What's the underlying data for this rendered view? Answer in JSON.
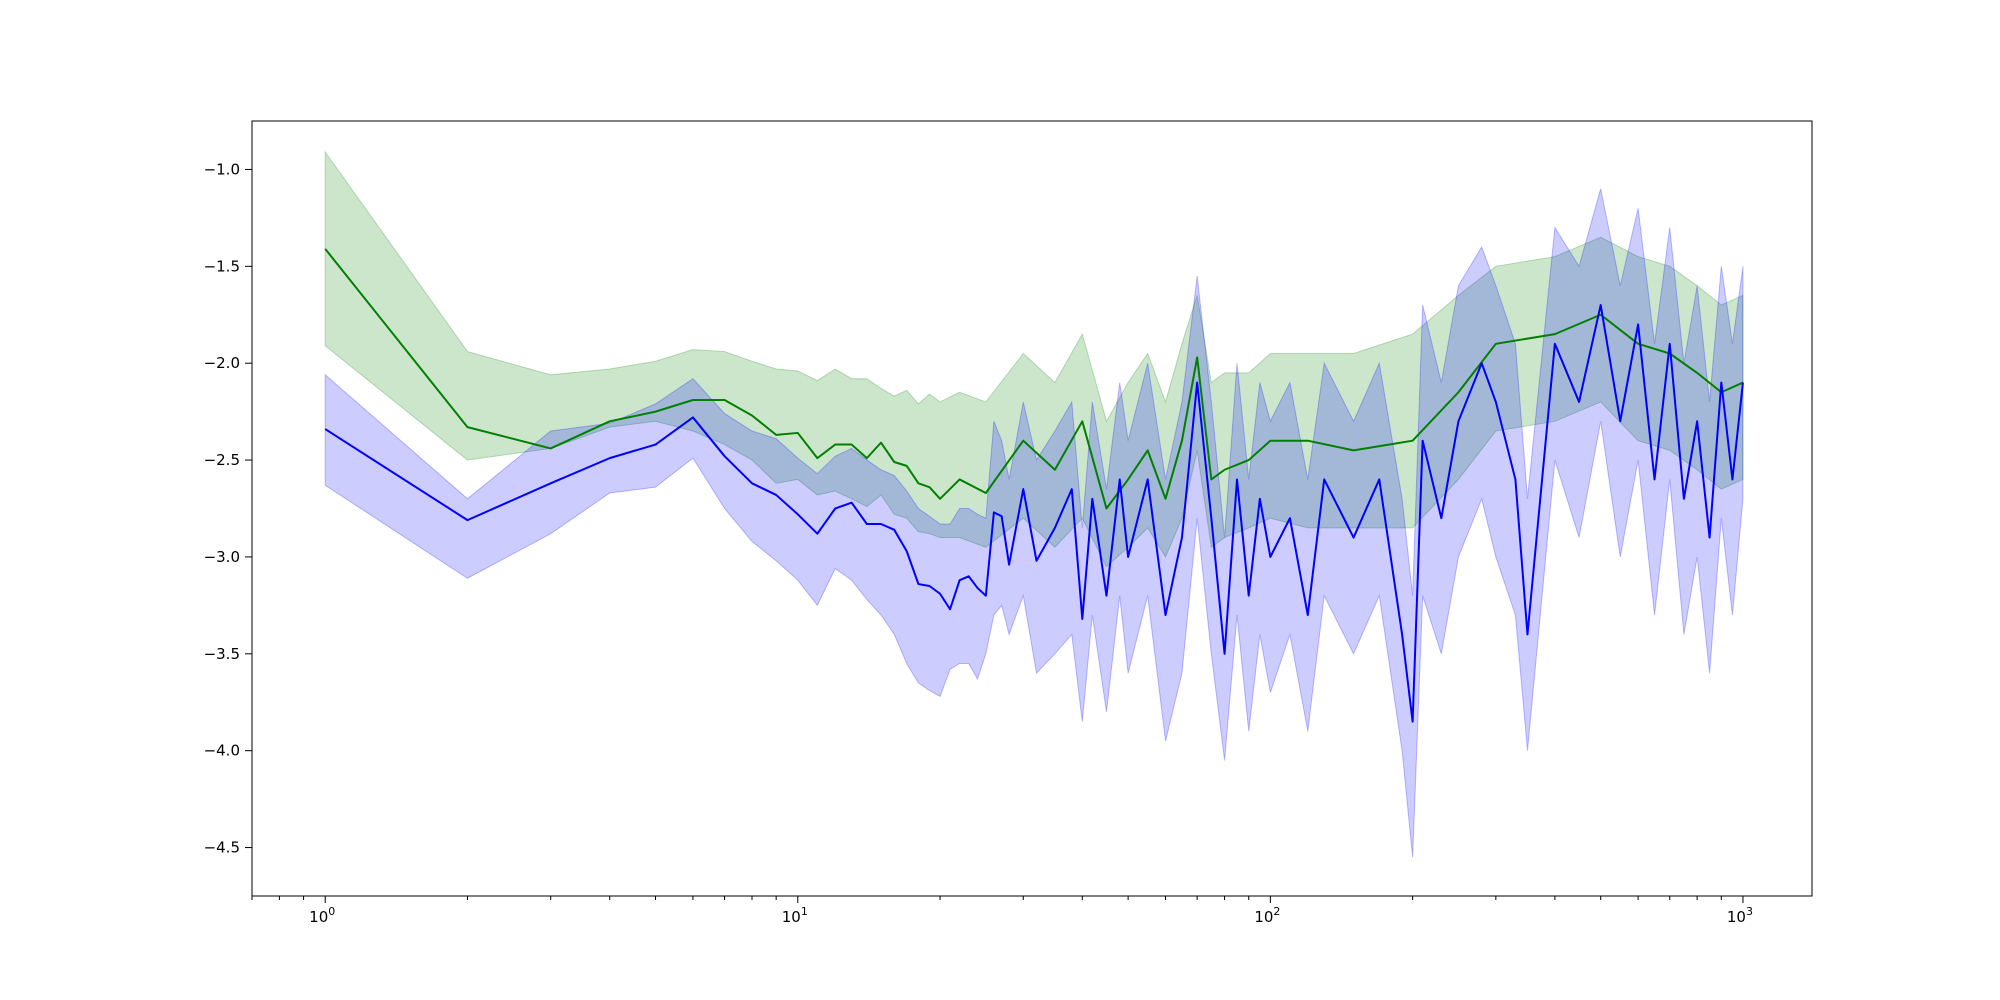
{
  "chart_data": {
    "type": "line",
    "title": "",
    "xlabel": "",
    "ylabel": "",
    "x_scale": "log",
    "xlim": [
      0.7,
      1400
    ],
    "ylim": [
      -4.75,
      -0.75
    ],
    "grid": false,
    "legend": "none",
    "x_ticks": [
      {
        "value": 1,
        "base": "10",
        "exp": "0"
      },
      {
        "value": 10,
        "base": "10",
        "exp": "1"
      },
      {
        "value": 100,
        "base": "10",
        "exp": "2"
      },
      {
        "value": 1000,
        "base": "10",
        "exp": "3"
      }
    ],
    "y_ticks": [
      {
        "value": -1.0,
        "label": "−1.0"
      },
      {
        "value": -1.5,
        "label": "−1.5"
      },
      {
        "value": -2.0,
        "label": "−2.0"
      },
      {
        "value": -2.5,
        "label": "−2.5"
      },
      {
        "value": -3.0,
        "label": "−3.0"
      },
      {
        "value": -3.5,
        "label": "−3.5"
      },
      {
        "value": -4.0,
        "label": "−4.0"
      },
      {
        "value": -4.5,
        "label": "−4.5"
      }
    ],
    "series": [
      {
        "color": "#008000",
        "band_color": "#008000",
        "band_opacity": 0.2,
        "x": [
          1,
          2,
          3,
          4,
          5,
          6,
          7,
          8,
          9,
          10,
          11,
          12,
          13,
          14,
          15,
          16,
          17,
          18,
          19,
          20,
          22,
          25,
          30,
          35,
          40,
          45,
          50,
          55,
          60,
          65,
          70,
          75,
          80,
          90,
          100,
          120,
          150,
          200,
          250,
          300,
          400,
          500,
          600,
          700,
          800,
          900,
          1000
        ],
        "y": [
          -1.41,
          -2.33,
          -2.44,
          -2.3,
          -2.25,
          -2.19,
          -2.19,
          -2.27,
          -2.37,
          -2.36,
          -2.49,
          -2.42,
          -2.42,
          -2.49,
          -2.41,
          -2.51,
          -2.53,
          -2.62,
          -2.64,
          -2.7,
          -2.6,
          -2.67,
          -2.4,
          -2.55,
          -2.3,
          -2.75,
          -2.6,
          -2.45,
          -2.7,
          -2.4,
          -1.97,
          -2.6,
          -2.55,
          -2.5,
          -2.4,
          -2.4,
          -2.45,
          -2.4,
          -2.15,
          -1.9,
          -1.85,
          -1.75,
          -1.9,
          -1.95,
          -2.05,
          -2.15,
          -2.1
        ],
        "lower": [
          -1.91,
          -2.5,
          -2.44,
          -2.33,
          -2.3,
          -2.35,
          -2.42,
          -2.5,
          -2.62,
          -2.6,
          -2.68,
          -2.66,
          -2.7,
          -2.74,
          -2.68,
          -2.78,
          -2.8,
          -2.87,
          -2.88,
          -2.9,
          -2.9,
          -2.95,
          -2.8,
          -2.95,
          -2.8,
          -3.05,
          -2.95,
          -2.85,
          -3.0,
          -2.8,
          -2.45,
          -2.95,
          -2.9,
          -2.85,
          -2.8,
          -2.85,
          -2.85,
          -2.85,
          -2.6,
          -2.35,
          -2.3,
          -2.2,
          -2.4,
          -2.45,
          -2.55,
          -2.65,
          -2.6
        ],
        "upper": [
          -0.91,
          -1.94,
          -2.06,
          -2.03,
          -1.99,
          -1.93,
          -1.94,
          -1.99,
          -2.03,
          -2.04,
          -2.09,
          -2.03,
          -2.08,
          -2.08,
          -2.13,
          -2.17,
          -2.14,
          -2.21,
          -2.16,
          -2.2,
          -2.15,
          -2.2,
          -1.95,
          -2.1,
          -1.85,
          -2.3,
          -2.1,
          -1.95,
          -2.2,
          -1.9,
          -1.65,
          -2.1,
          -2.05,
          -2.05,
          -1.95,
          -1.95,
          -1.95,
          -1.85,
          -1.65,
          -1.5,
          -1.45,
          -1.35,
          -1.45,
          -1.5,
          -1.6,
          -1.7,
          -1.65
        ]
      },
      {
        "color": "#0000ff",
        "band_color": "#0000ff",
        "band_opacity": 0.2,
        "x": [
          1,
          2,
          3,
          4,
          5,
          6,
          7,
          8,
          9,
          10,
          11,
          12,
          13,
          14,
          15,
          16,
          17,
          18,
          19,
          20,
          21,
          22,
          23,
          24,
          25,
          26,
          27,
          28,
          30,
          32,
          35,
          38,
          40,
          42,
          45,
          48,
          50,
          55,
          60,
          65,
          70,
          75,
          80,
          85,
          90,
          95,
          100,
          110,
          120,
          130,
          150,
          170,
          190,
          200,
          210,
          230,
          250,
          280,
          300,
          330,
          350,
          400,
          450,
          500,
          550,
          600,
          650,
          700,
          750,
          800,
          850,
          900,
          950,
          1000
        ],
        "y": [
          -2.34,
          -2.81,
          -2.62,
          -2.49,
          -2.42,
          -2.28,
          -2.48,
          -2.62,
          -2.68,
          -2.78,
          -2.88,
          -2.75,
          -2.72,
          -2.83,
          -2.83,
          -2.86,
          -2.97,
          -3.14,
          -3.15,
          -3.19,
          -3.27,
          -3.12,
          -3.1,
          -3.16,
          -3.2,
          -2.77,
          -2.79,
          -3.04,
          -2.65,
          -3.02,
          -2.85,
          -2.65,
          -3.32,
          -2.7,
          -3.2,
          -2.6,
          -3.0,
          -2.6,
          -3.3,
          -2.9,
          -2.1,
          -2.8,
          -3.5,
          -2.6,
          -3.2,
          -2.7,
          -3.0,
          -2.8,
          -3.3,
          -2.6,
          -2.9,
          -2.6,
          -3.4,
          -3.85,
          -2.4,
          -2.8,
          -2.3,
          -2.0,
          -2.2,
          -2.6,
          -3.4,
          -1.9,
          -2.2,
          -1.7,
          -2.3,
          -1.8,
          -2.6,
          -1.9,
          -2.7,
          -2.3,
          -2.9,
          -2.1,
          -2.6,
          -2.1
        ],
        "lower": [
          -2.63,
          -3.11,
          -2.88,
          -2.67,
          -2.64,
          -2.49,
          -2.75,
          -2.92,
          -3.02,
          -3.12,
          -3.25,
          -3.06,
          -3.12,
          -3.22,
          -3.3,
          -3.4,
          -3.55,
          -3.65,
          -3.69,
          -3.72,
          -3.58,
          -3.55,
          -3.55,
          -3.63,
          -3.5,
          -3.3,
          -3.25,
          -3.4,
          -3.2,
          -3.6,
          -3.5,
          -3.4,
          -3.85,
          -3.3,
          -3.8,
          -3.2,
          -3.6,
          -3.2,
          -3.95,
          -3.6,
          -2.8,
          -3.5,
          -4.05,
          -3.3,
          -3.9,
          -3.4,
          -3.7,
          -3.4,
          -3.9,
          -3.2,
          -3.5,
          -3.2,
          -4.0,
          -4.55,
          -3.2,
          -3.5,
          -3.0,
          -2.7,
          -3.0,
          -3.3,
          -4.0,
          -2.5,
          -2.9,
          -2.3,
          -3.0,
          -2.5,
          -3.3,
          -2.6,
          -3.4,
          -3.0,
          -3.6,
          -2.8,
          -3.3,
          -2.7
        ],
        "upper": [
          -2.06,
          -2.7,
          -2.35,
          -2.31,
          -2.21,
          -2.08,
          -2.26,
          -2.35,
          -2.39,
          -2.49,
          -2.57,
          -2.48,
          -2.44,
          -2.5,
          -2.55,
          -2.58,
          -2.66,
          -2.75,
          -2.79,
          -2.83,
          -2.83,
          -2.75,
          -2.75,
          -2.78,
          -2.8,
          -2.3,
          -2.4,
          -2.6,
          -2.2,
          -2.5,
          -2.35,
          -2.2,
          -2.85,
          -2.2,
          -2.65,
          -2.1,
          -2.4,
          -2.0,
          -2.6,
          -2.2,
          -1.55,
          -2.2,
          -2.9,
          -2.0,
          -2.6,
          -2.1,
          -2.3,
          -2.1,
          -2.6,
          -2.0,
          -2.3,
          -2.0,
          -2.7,
          -3.2,
          -1.7,
          -2.1,
          -1.6,
          -1.4,
          -1.6,
          -1.9,
          -2.7,
          -1.3,
          -1.5,
          -1.1,
          -1.6,
          -1.2,
          -1.9,
          -1.3,
          -2.0,
          -1.6,
          -2.2,
          -1.5,
          -1.9,
          -1.5
        ]
      }
    ]
  }
}
